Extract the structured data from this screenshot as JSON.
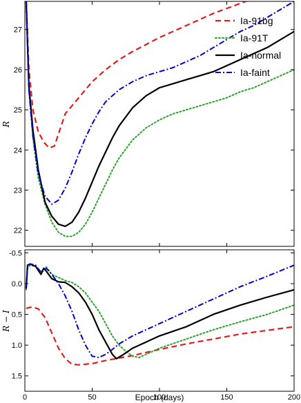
{
  "chart_data": [
    {
      "type": "line",
      "panel": "top",
      "xlabel": "",
      "ylabel": "R",
      "xlim": [
        0,
        200
      ],
      "ylim": [
        27.7,
        21.6
      ],
      "y_inverted": true,
      "yticks": [
        22,
        23,
        24,
        25,
        26,
        27
      ],
      "legend_position": "top-right",
      "series": [
        {
          "name": "Ia-91bg",
          "color": "#e41a1c",
          "style": "dashed",
          "x": [
            1,
            3,
            6,
            10,
            14,
            18,
            22,
            26,
            30,
            40,
            50,
            60,
            70,
            80,
            100,
            120,
            140,
            160,
            180,
            200
          ],
          "y": [
            27.7,
            26.0,
            25.0,
            24.45,
            24.2,
            24.05,
            24.1,
            24.5,
            24.9,
            25.3,
            25.7,
            26.0,
            26.25,
            26.45,
            26.8,
            27.1,
            27.4,
            27.65,
            27.9,
            28.1
          ]
        },
        {
          "name": "Ia-91T",
          "color": "#2ca02c",
          "style": "dotted",
          "x": [
            1,
            3,
            6,
            10,
            15,
            20,
            25,
            30,
            35,
            40,
            45,
            50,
            55,
            60,
            65,
            70,
            80,
            90,
            100,
            110,
            120,
            130,
            140,
            150,
            160,
            170,
            180,
            190,
            200
          ],
          "y": [
            27.7,
            25.5,
            24.3,
            23.3,
            22.65,
            22.2,
            21.95,
            21.85,
            21.85,
            21.95,
            22.15,
            22.45,
            22.8,
            23.15,
            23.5,
            23.8,
            24.25,
            24.55,
            24.75,
            24.9,
            25.0,
            25.1,
            25.2,
            25.3,
            25.45,
            25.55,
            25.7,
            25.85,
            26.0
          ]
        },
        {
          "name": "Ia-normal",
          "color": "#000000",
          "style": "solid",
          "x": [
            1,
            3,
            6,
            10,
            15,
            20,
            25,
            30,
            35,
            40,
            45,
            50,
            55,
            60,
            65,
            70,
            80,
            90,
            100,
            110,
            120,
            130,
            140,
            150,
            160,
            170,
            180,
            190,
            200
          ],
          "y": [
            27.7,
            25.6,
            24.5,
            23.5,
            22.7,
            22.35,
            22.15,
            22.1,
            22.2,
            22.45,
            22.8,
            23.2,
            23.6,
            23.95,
            24.3,
            24.6,
            25.05,
            25.35,
            25.55,
            25.65,
            25.75,
            25.85,
            25.95,
            26.1,
            26.25,
            26.4,
            26.55,
            26.75,
            26.95
          ]
        },
        {
          "name": "Ia-faint",
          "color": "#0000cc",
          "style": "dashdot",
          "x": [
            1,
            3,
            6,
            10,
            15,
            20,
            25,
            30,
            35,
            40,
            45,
            50,
            55,
            60,
            70,
            80,
            90,
            100,
            110,
            120,
            130,
            140,
            150,
            160,
            170,
            180,
            190,
            200
          ],
          "y": [
            27.7,
            25.5,
            24.35,
            23.4,
            22.85,
            22.65,
            22.75,
            23.05,
            23.45,
            23.9,
            24.3,
            24.65,
            24.95,
            25.2,
            25.5,
            25.7,
            25.85,
            25.95,
            26.05,
            26.2,
            26.35,
            26.55,
            26.75,
            26.95,
            27.1,
            27.3,
            27.5,
            27.7
          ]
        }
      ]
    },
    {
      "type": "line",
      "panel": "bottom",
      "xlabel": "Epoch (days)",
      "ylabel": "R − I",
      "xlim": [
        0,
        200
      ],
      "ylim": [
        -0.55,
        1.75
      ],
      "yticks": [
        -0.5,
        0.0,
        0.5,
        1.0,
        1.5
      ],
      "xticks": [
        0,
        50,
        100,
        150,
        200
      ],
      "series": [
        {
          "name": "Ia-91bg",
          "color": "#e41a1c",
          "style": "dashed",
          "x": [
            1,
            5,
            10,
            15,
            20,
            25,
            30,
            35,
            40,
            50,
            60,
            80,
            100,
            120,
            140,
            160,
            180,
            200
          ],
          "y": [
            0.4,
            0.38,
            0.41,
            0.55,
            0.8,
            1.05,
            1.22,
            1.31,
            1.32,
            1.3,
            1.25,
            1.17,
            1.07,
            0.98,
            0.9,
            0.82,
            0.76,
            0.7
          ]
        },
        {
          "name": "Ia-91T",
          "color": "#2ca02c",
          "style": "dotted",
          "x": [
            1,
            2,
            4,
            8,
            12,
            16,
            20,
            25,
            30,
            35,
            40,
            45,
            50,
            55,
            60,
            65,
            70,
            75,
            80,
            85,
            90,
            100,
            120,
            140,
            160,
            180,
            200
          ],
          "y": [
            0.1,
            -0.25,
            -0.3,
            -0.28,
            -0.2,
            -0.27,
            -0.15,
            -0.1,
            -0.05,
            -0.02,
            0.05,
            0.15,
            0.3,
            0.45,
            0.65,
            0.85,
            1.0,
            1.1,
            1.18,
            1.2,
            1.15,
            1.05,
            0.9,
            0.75,
            0.62,
            0.5,
            0.35
          ]
        },
        {
          "name": "Ia-normal",
          "color": "#000000",
          "style": "solid",
          "x": [
            1,
            2,
            4,
            8,
            12,
            14,
            16,
            20,
            25,
            30,
            35,
            40,
            45,
            50,
            55,
            60,
            65,
            68,
            72,
            80,
            90,
            100,
            120,
            140,
            160,
            180,
            200
          ],
          "y": [
            0.08,
            -0.3,
            -0.32,
            -0.28,
            -0.15,
            -0.25,
            -0.2,
            -0.08,
            -0.03,
            -0.02,
            0.05,
            0.15,
            0.3,
            0.5,
            0.75,
            0.95,
            1.15,
            1.22,
            1.17,
            1.05,
            0.95,
            0.85,
            0.7,
            0.5,
            0.35,
            0.22,
            0.1
          ]
        },
        {
          "name": "Ia-faint",
          "color": "#0000cc",
          "style": "dashdot",
          "x": [
            1,
            2,
            4,
            8,
            12,
            16,
            20,
            25,
            30,
            35,
            40,
            45,
            50,
            55,
            60,
            65,
            70,
            80,
            100,
            120,
            140,
            160,
            180,
            200
          ],
          "y": [
            0.05,
            -0.3,
            -0.32,
            -0.3,
            -0.18,
            -0.25,
            -0.15,
            0.0,
            0.2,
            0.45,
            0.75,
            1.0,
            1.18,
            1.2,
            1.15,
            1.07,
            0.98,
            0.85,
            0.65,
            0.45,
            0.25,
            0.05,
            -0.12,
            -0.3
          ]
        }
      ]
    }
  ]
}
